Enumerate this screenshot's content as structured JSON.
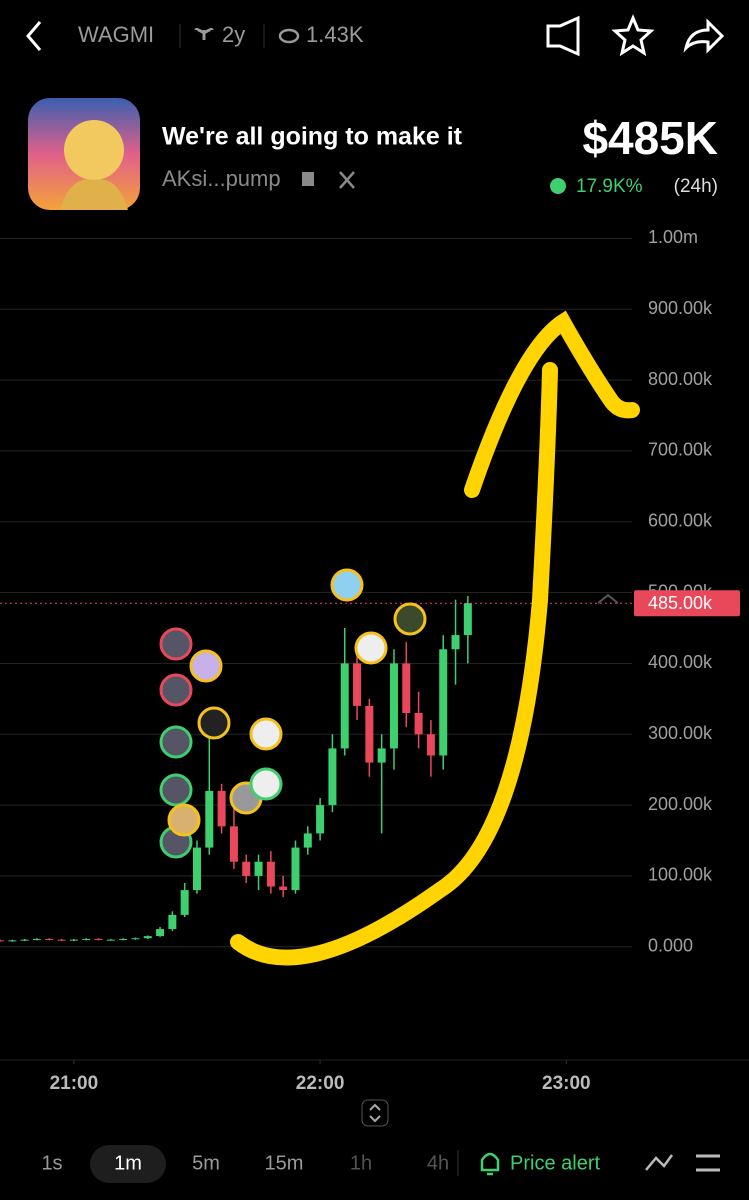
{
  "header": {
    "title": "WAGMI",
    "age": "2y",
    "views": "1.43K"
  },
  "token": {
    "name": "We're all going to make it",
    "handle": "AKsi...pump",
    "price": "$485K",
    "change": "17.9K%",
    "period": "(24h)"
  },
  "chart_data": {
    "type": "candlestick",
    "x": [
      1242,
      1245,
      1248,
      1251,
      1254,
      1257,
      1260,
      1263,
      1266,
      1269,
      1272,
      1275,
      1278,
      1281,
      1284,
      1287,
      1290,
      1293,
      1296,
      1299,
      1302,
      1305,
      1308,
      1311,
      1314,
      1317,
      1320,
      1323,
      1326,
      1329,
      1332,
      1335,
      1338,
      1341,
      1344,
      1347,
      1350,
      1353,
      1356
    ],
    "open": [
      9000,
      8000,
      9000,
      10000,
      11000,
      10000,
      9000,
      10000,
      11000,
      10000,
      10000,
      11000,
      12000,
      15000,
      25000,
      45000,
      80000,
      140000,
      220000,
      170000,
      120000,
      100000,
      120000,
      85000,
      80000,
      140000,
      160000,
      200000,
      280000,
      400000,
      340000,
      260000,
      280000,
      400000,
      330000,
      300000,
      270000,
      420000,
      440000
    ],
    "high": [
      10000,
      10000,
      11000,
      12000,
      12000,
      11000,
      11000,
      12000,
      12000,
      11000,
      12000,
      13000,
      16000,
      28000,
      50000,
      90000,
      150000,
      300000,
      230000,
      200000,
      130000,
      130000,
      135000,
      100000,
      150000,
      170000,
      210000,
      300000,
      450000,
      420000,
      350000,
      300000,
      420000,
      430000,
      360000,
      320000,
      440000,
      490000,
      495000
    ],
    "low": [
      7000,
      7000,
      8000,
      9000,
      9000,
      8000,
      8000,
      9000,
      9000,
      9000,
      9000,
      10000,
      11000,
      14000,
      22000,
      42000,
      75000,
      130000,
      160000,
      110000,
      90000,
      80000,
      75000,
      70000,
      75000,
      130000,
      150000,
      190000,
      270000,
      320000,
      240000,
      160000,
      250000,
      310000,
      280000,
      240000,
      250000,
      370000,
      400000
    ],
    "close": [
      8000,
      9000,
      10000,
      11000,
      10000,
      9000,
      10000,
      11000,
      10000,
      10000,
      11000,
      12000,
      15000,
      25000,
      45000,
      80000,
      140000,
      220000,
      170000,
      120000,
      100000,
      120000,
      85000,
      80000,
      140000,
      160000,
      200000,
      280000,
      400000,
      340000,
      260000,
      280000,
      400000,
      330000,
      300000,
      270000,
      420000,
      440000,
      485000
    ],
    "up_color": "#3ecf6e",
    "down_color": "#e8485a",
    "current_price": 485000,
    "current_price_label": "485.00k",
    "xlim": [
      1242,
      1396
    ],
    "xticks": [
      {
        "value": 1260,
        "label": "21:00"
      },
      {
        "value": 1320,
        "label": "22:00"
      },
      {
        "value": 1380,
        "label": "23:00"
      }
    ],
    "ylim": [
      -150000,
      1050000
    ],
    "yticks": [
      {
        "value": 0,
        "label": "0.000"
      },
      {
        "value": 100000,
        "label": "100.00k"
      },
      {
        "value": 200000,
        "label": "200.00k"
      },
      {
        "value": 300000,
        "label": "300.00k"
      },
      {
        "value": 400000,
        "label": "400.00k"
      },
      {
        "value": 500000,
        "label": "500.00k"
      },
      {
        "value": 600000,
        "label": "600.00k"
      },
      {
        "value": 700000,
        "label": "700.00k"
      },
      {
        "value": 800000,
        "label": "800.00k"
      },
      {
        "value": 900000,
        "label": "900.00k"
      },
      {
        "value": 1000000,
        "label": "1.00m"
      }
    ],
    "grid": true
  },
  "toolbar": {
    "intervals": [
      "1s",
      "1m",
      "5m",
      "15m",
      "1h",
      "4h"
    ],
    "active": 1,
    "price_alert": "Price alert"
  }
}
